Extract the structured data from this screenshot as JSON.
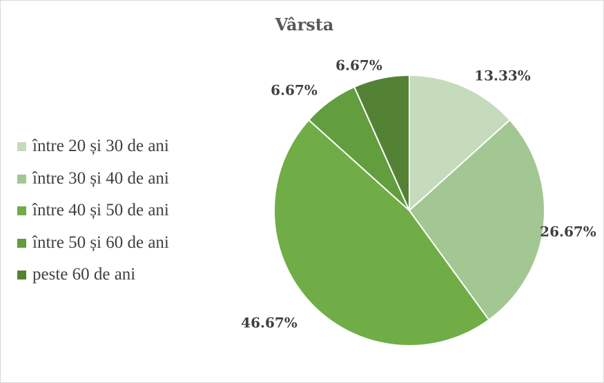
{
  "chart_data": {
    "type": "pie",
    "title": "Vârsta",
    "categories": [
      "între 20 și 30 de ani",
      "între 30 și 40 de ani",
      "între 40 și 50 de ani",
      "între 50 și 60 de ani",
      "peste 60 de ani"
    ],
    "values": [
      13.33,
      26.67,
      46.67,
      6.67,
      6.67
    ],
    "data_labels": [
      "13.33%",
      "26.67%",
      "46.67%",
      "6.67%",
      "6.67%"
    ],
    "colors": [
      "#c5dbbc",
      "#a3c792",
      "#70ad47",
      "#629d3e",
      "#548235"
    ],
    "legend": {
      "position": "left"
    }
  }
}
